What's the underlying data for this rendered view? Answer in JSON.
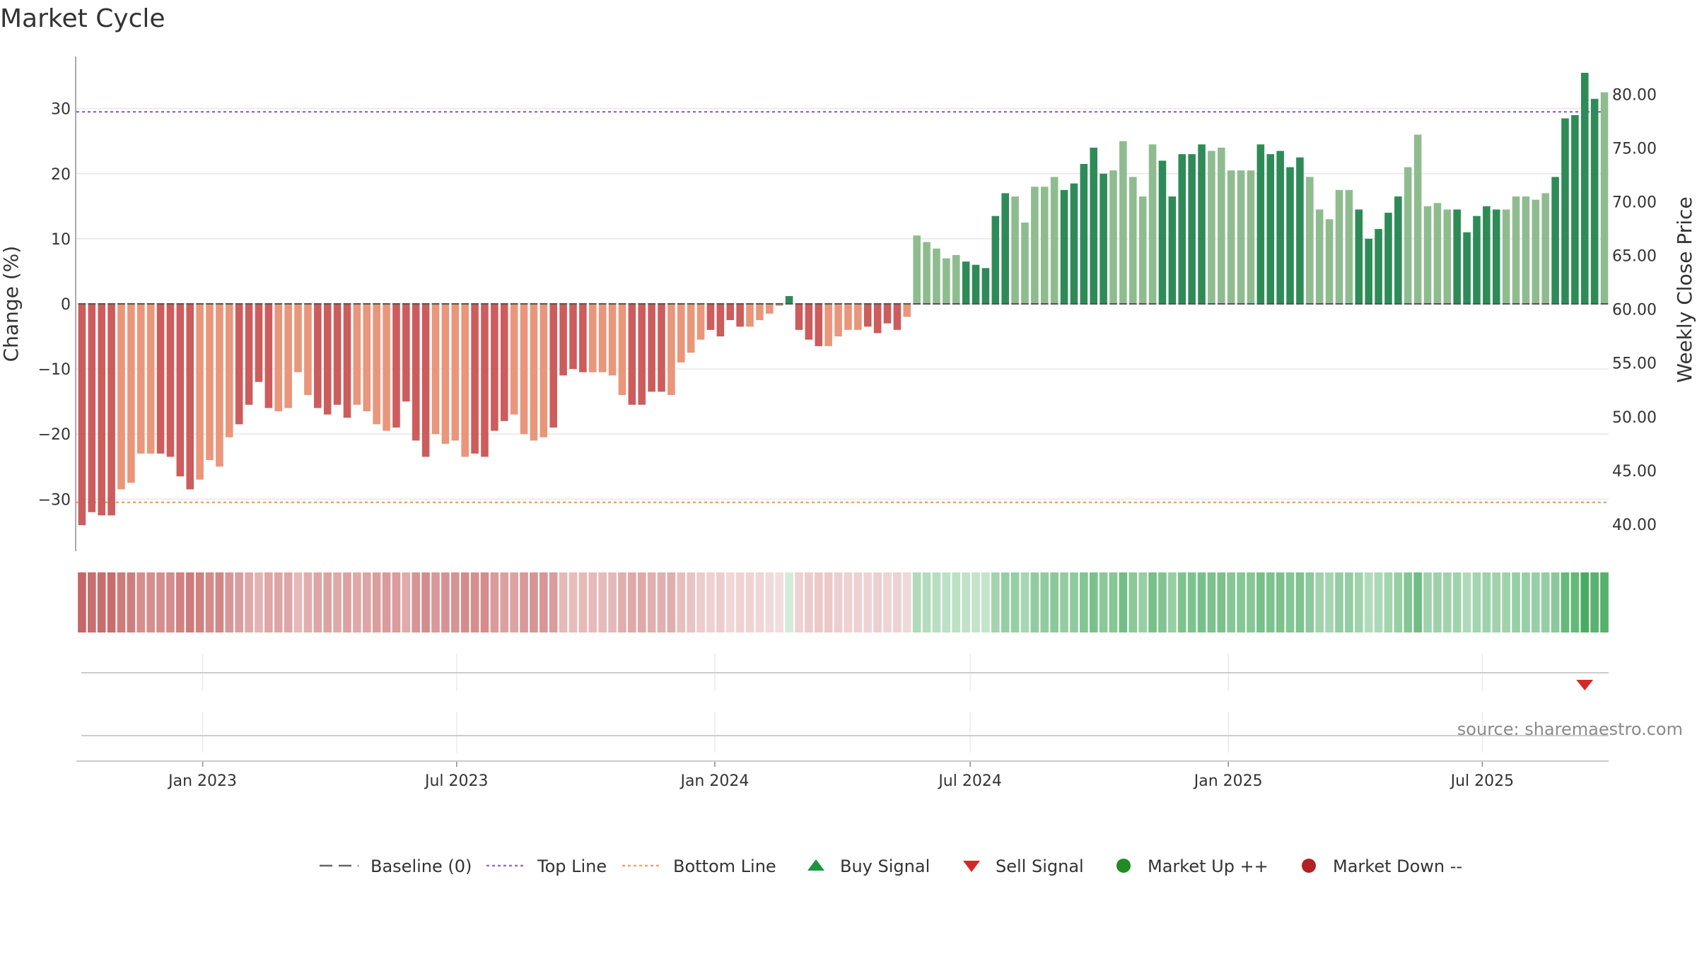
{
  "chart_data": {
    "type": "bar",
    "title": "Market Cycle",
    "ylabel": "Change (%)",
    "y2label": "Weekly Close Price",
    "ylim": [
      -38,
      38
    ],
    "y2lim": [
      37.5,
      83.5
    ],
    "yticks": [
      30,
      20,
      10,
      0,
      -10,
      -20,
      -30
    ],
    "ytick_labels": [
      "30",
      "20",
      "10",
      "0",
      "−10",
      "−20",
      "−30"
    ],
    "y2ticks": [
      80,
      75,
      70,
      65,
      60,
      55,
      50,
      45,
      40
    ],
    "y2tick_labels": [
      "80.00",
      "75.00",
      "70.00",
      "65.00",
      "60.00",
      "55.00",
      "50.00",
      "45.00",
      "40.00"
    ],
    "xlim": [
      "2022-10-03",
      "2025-09-29"
    ],
    "xticks": [
      "2023-01-01",
      "2023-07-01",
      "2024-01-01",
      "2024-07-01",
      "2025-01-01",
      "2025-07-01"
    ],
    "xtick_labels": [
      "Jan 2023",
      "Jul 2023",
      "Jan 2024",
      "Jul 2024",
      "Jan 2025",
      "Jul 2025"
    ],
    "start_week": "2022-10-07",
    "top_line": 29.5,
    "bottom_line": -30.5,
    "baseline": 0,
    "values": [
      -34,
      -32,
      -32.5,
      -32.5,
      -28.5,
      -27.5,
      -23,
      -23,
      -23,
      -23.5,
      -26.5,
      -28.5,
      -27,
      -24,
      -25,
      -20.5,
      -18.5,
      -15.5,
      -12,
      -16,
      -16.5,
      -16,
      -10.5,
      -14,
      -16,
      -17,
      -15.5,
      -17.5,
      -15.5,
      -16.5,
      -18.5,
      -19.5,
      -19,
      -15,
      -21,
      -23.5,
      -20,
      -21.5,
      -21,
      -23.5,
      -23,
      -23.5,
      -19.5,
      -18,
      -17,
      -20,
      -21,
      -20.5,
      -19,
      -11,
      -10,
      -10.5,
      -10.5,
      -10.5,
      -11,
      -14,
      -15.5,
      -15.5,
      -13.5,
      -13.5,
      -14,
      -9,
      -7.5,
      -5.5,
      -4,
      -5,
      -2.5,
      -3.5,
      -3.5,
      -2.5,
      -1.5,
      -0.3,
      1.2,
      -4,
      -5.5,
      -6.5,
      -6.5,
      -5,
      -4,
      -4,
      -3.5,
      -4.5,
      -3,
      -4,
      -2,
      10.5,
      9.5,
      8.5,
      7,
      7.5,
      6.5,
      6,
      5.5,
      13.5,
      17,
      16.5,
      12.5,
      18,
      18,
      19.5,
      17.5,
      18.5,
      21.5,
      24,
      20,
      20.5,
      25,
      19.5,
      16.5,
      24.5,
      22,
      16.5,
      23,
      23,
      24.5,
      23.5,
      24,
      20.5,
      20.5,
      20.5,
      24.5,
      23,
      23.5,
      21,
      22.5,
      19.5,
      14.5,
      13,
      17.5,
      17.5,
      14.5,
      10,
      11.5,
      14,
      16.5,
      21,
      26,
      15,
      15.5,
      14.5,
      14.5,
      11,
      13.5,
      15,
      14.5,
      14.5,
      16.5,
      16.5,
      16,
      17,
      19.5,
      28.5,
      29,
      35.5,
      31.5,
      32.5
    ],
    "bar_colors": {
      "down_strong": "#cd5c5c",
      "down_weak": "#e9967a",
      "up_strong": "#2e8b57",
      "up_weak": "#8fbc8f"
    },
    "heat_colors": {
      "negative_rgb": [
        196,
        96,
        96
      ],
      "positive_rgb": [
        72,
        170,
        96
      ]
    },
    "sell_signal_week": "2025-09-12",
    "line_colors": {
      "top_line": "#9370db",
      "bottom_line": "#f4a460",
      "baseline": "#555555"
    },
    "legend": [
      {
        "label": "Baseline (0)",
        "symbol": "dash",
        "color": "#666666"
      },
      {
        "label": "Top Line",
        "symbol": "dotted",
        "color": "#9370db"
      },
      {
        "label": "Bottom Line",
        "symbol": "dotted",
        "color": "#f4a460"
      },
      {
        "label": "Buy Signal",
        "symbol": "triangle-up",
        "color": "#1a9641"
      },
      {
        "label": "Sell Signal",
        "symbol": "triangle-down",
        "color": "#d62728"
      },
      {
        "label": "Market Up ++",
        "symbol": "circle",
        "color": "#228b22"
      },
      {
        "label": "Market Down --",
        "symbol": "circle",
        "color": "#b22222"
      }
    ],
    "legend_position": "bottom-center",
    "source": "source: sharemaestro.com",
    "grid": true
  }
}
